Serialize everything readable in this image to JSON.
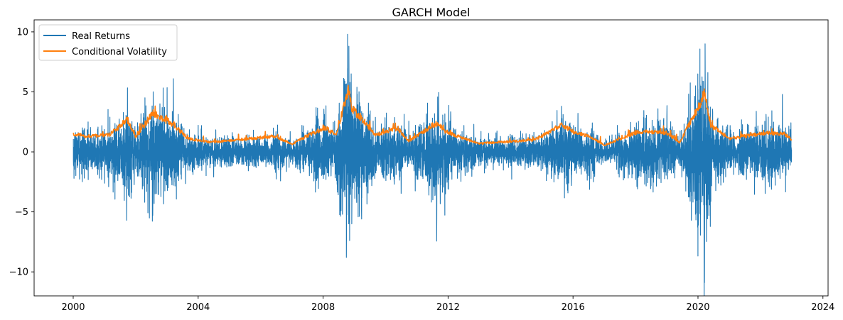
{
  "chart_data": {
    "type": "line",
    "title": "GARCH Model",
    "xlabel": "",
    "ylabel": "",
    "x_range": [
      "2000-01-03",
      "2022-12-30"
    ],
    "xlim": [
      "1998-10-01",
      "2024-03-01"
    ],
    "ylim": [
      -12,
      11
    ],
    "x_ticks": [
      {
        "date": "2000-01-01",
        "label": "2000"
      },
      {
        "date": "2004-01-01",
        "label": "2004"
      },
      {
        "date": "2008-01-01",
        "label": "2008"
      },
      {
        "date": "2012-01-01",
        "label": "2012"
      },
      {
        "date": "2016-01-01",
        "label": "2016"
      },
      {
        "date": "2020-01-01",
        "label": "2020"
      },
      {
        "date": "2024-01-01",
        "label": "2024"
      }
    ],
    "y_ticks": [
      {
        "value": 10,
        "label": "10"
      },
      {
        "value": 5,
        "label": "5"
      },
      {
        "value": 0,
        "label": "0"
      },
      {
        "value": -5,
        "label": "−5"
      },
      {
        "value": -10,
        "label": "−10"
      }
    ],
    "grid": false,
    "legend_position": "top-left",
    "series": [
      {
        "name": "Real Returns",
        "color": "#1f77b4",
        "volatility_profile": [
          {
            "date": "2000-01-03",
            "sigma": 1.35
          },
          {
            "date": "2000-06-01",
            "sigma": 1.15
          },
          {
            "date": "2001-03-01",
            "sigma": 1.3
          },
          {
            "date": "2001-09-20",
            "sigma": 2.4
          },
          {
            "date": "2002-01-01",
            "sigma": 1.2
          },
          {
            "date": "2002-07-15",
            "sigma": 2.8
          },
          {
            "date": "2002-10-15",
            "sigma": 2.5
          },
          {
            "date": "2003-03-20",
            "sigma": 2.0
          },
          {
            "date": "2003-09-01",
            "sigma": 1.0
          },
          {
            "date": "2004-06-01",
            "sigma": 0.75
          },
          {
            "date": "2006-05-20",
            "sigma": 0.75
          },
          {
            "date": "2006-06-15",
            "sigma": 1.2
          },
          {
            "date": "2007-01-01",
            "sigma": 0.65
          },
          {
            "date": "2007-08-10",
            "sigma": 1.3
          },
          {
            "date": "2008-01-20",
            "sigma": 1.8
          },
          {
            "date": "2008-06-01",
            "sigma": 1.4
          },
          {
            "date": "2008-10-15",
            "sigma": 4.2
          },
          {
            "date": "2008-12-01",
            "sigma": 3.4
          },
          {
            "date": "2009-03-10",
            "sigma": 2.8
          },
          {
            "date": "2009-09-01",
            "sigma": 1.3
          },
          {
            "date": "2010-05-10",
            "sigma": 1.6
          },
          {
            "date": "2010-10-01",
            "sigma": 0.9
          },
          {
            "date": "2011-08-10",
            "sigma": 2.4
          },
          {
            "date": "2011-12-01",
            "sigma": 1.6
          },
          {
            "date": "2012-06-01",
            "sigma": 1.1
          },
          {
            "date": "2013-01-01",
            "sigma": 0.75
          },
          {
            "date": "2014-10-15",
            "sigma": 0.9
          },
          {
            "date": "2015-08-25",
            "sigma": 1.7
          },
          {
            "date": "2016-02-10",
            "sigma": 1.5
          },
          {
            "date": "2016-06-25",
            "sigma": 1.2
          },
          {
            "date": "2017-01-01",
            "sigma": 0.5
          },
          {
            "date": "2018-02-05",
            "sigma": 1.6
          },
          {
            "date": "2018-12-20",
            "sigma": 1.5
          },
          {
            "date": "2019-06-01",
            "sigma": 0.8
          },
          {
            "date": "2020-03-16",
            "sigma": 5.0
          },
          {
            "date": "2020-06-01",
            "sigma": 2.0
          },
          {
            "date": "2021-01-01",
            "sigma": 1.0
          },
          {
            "date": "2022-03-01",
            "sigma": 1.6
          },
          {
            "date": "2022-10-01",
            "sigma": 1.5
          },
          {
            "date": "2022-12-30",
            "sigma": 1.1
          }
        ],
        "extreme_points": [
          {
            "date": "2001-09-17",
            "value": -5.7
          },
          {
            "date": "2002-07-24",
            "value": 5.0
          },
          {
            "date": "2002-07-19",
            "value": -5.3
          },
          {
            "date": "2003-03-17",
            "value": 6.1
          },
          {
            "date": "2008-09-29",
            "value": -8.8
          },
          {
            "date": "2008-10-13",
            "value": 9.8
          },
          {
            "date": "2008-10-28",
            "value": 8.8
          },
          {
            "date": "2008-11-24",
            "value": 6.5
          },
          {
            "date": "2008-12-01",
            "value": -6.0
          },
          {
            "date": "2020-03-16",
            "value": -10.9
          },
          {
            "date": "2020-03-24",
            "value": 9.0
          },
          {
            "date": "2020-03-12",
            "value": -9.0
          }
        ]
      },
      {
        "name": "Conditional Volatility",
        "color": "#ff7f0e",
        "level_profile": [
          {
            "date": "2000-01-03",
            "value": 1.5
          },
          {
            "date": "2000-06-01",
            "value": 1.3
          },
          {
            "date": "2001-03-01",
            "value": 1.4
          },
          {
            "date": "2001-09-25",
            "value": 2.7
          },
          {
            "date": "2002-01-01",
            "value": 1.2
          },
          {
            "date": "2002-07-25",
            "value": 3.3
          },
          {
            "date": "2002-10-15",
            "value": 2.9
          },
          {
            "date": "2003-03-20",
            "value": 2.3
          },
          {
            "date": "2003-09-01",
            "value": 1.1
          },
          {
            "date": "2004-06-01",
            "value": 0.8
          },
          {
            "date": "2006-06-15",
            "value": 1.3
          },
          {
            "date": "2007-01-01",
            "value": 0.65
          },
          {
            "date": "2007-08-10",
            "value": 1.5
          },
          {
            "date": "2008-01-25",
            "value": 2.0
          },
          {
            "date": "2008-06-01",
            "value": 1.4
          },
          {
            "date": "2008-10-20",
            "value": 5.2
          },
          {
            "date": "2008-12-10",
            "value": 3.5
          },
          {
            "date": "2009-03-10",
            "value": 2.9
          },
          {
            "date": "2009-09-01",
            "value": 1.4
          },
          {
            "date": "2010-05-20",
            "value": 2.0
          },
          {
            "date": "2010-10-01",
            "value": 0.9
          },
          {
            "date": "2011-08-15",
            "value": 2.4
          },
          {
            "date": "2011-12-01",
            "value": 1.7
          },
          {
            "date": "2012-06-01",
            "value": 1.2
          },
          {
            "date": "2013-01-01",
            "value": 0.7
          },
          {
            "date": "2014-10-15",
            "value": 1.0
          },
          {
            "date": "2015-08-25",
            "value": 2.3
          },
          {
            "date": "2016-02-10",
            "value": 1.5
          },
          {
            "date": "2016-06-27",
            "value": 1.4
          },
          {
            "date": "2017-01-01",
            "value": 0.55
          },
          {
            "date": "2018-02-08",
            "value": 1.7
          },
          {
            "date": "2018-12-24",
            "value": 1.6
          },
          {
            "date": "2019-06-01",
            "value": 0.8
          },
          {
            "date": "2020-03-18",
            "value": 4.8
          },
          {
            "date": "2020-06-01",
            "value": 2.2
          },
          {
            "date": "2021-01-01",
            "value": 1.1
          },
          {
            "date": "2022-03-08",
            "value": 1.6
          },
          {
            "date": "2022-10-10",
            "value": 1.5
          },
          {
            "date": "2022-12-30",
            "value": 1.0
          }
        ]
      }
    ]
  }
}
